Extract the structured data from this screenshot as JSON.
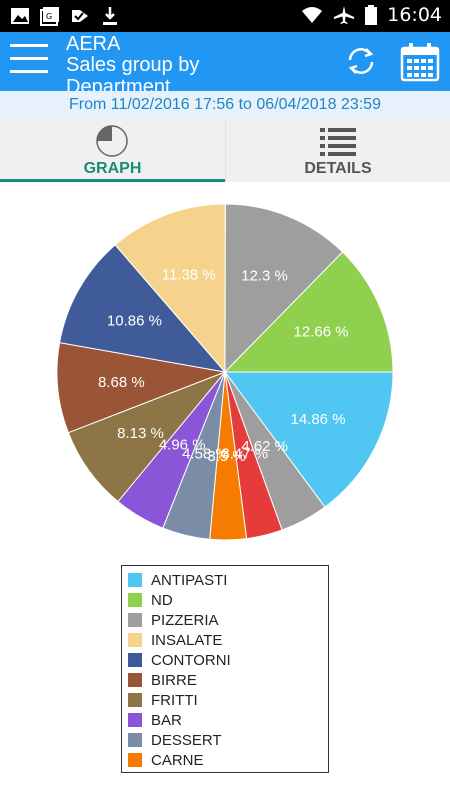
{
  "status_bar": {
    "time": "16:04",
    "icons": [
      "image-icon",
      "gallery-icon",
      "check-flag-icon",
      "download-icon",
      "wifi-icon",
      "airplane-icon",
      "battery-icon"
    ]
  },
  "app_bar": {
    "title": "AERA",
    "subtitle": "Sales group by Department",
    "icons": [
      "menu-icon",
      "refresh-icon",
      "calendar-icon"
    ]
  },
  "date_range": "From 11/02/2016 17:56 to 06/04/2018 23:59",
  "tabs": [
    {
      "label": "GRAPH",
      "icon": "pie-chart-icon",
      "selected": true
    },
    {
      "label": "DETAILS",
      "icon": "list-icon",
      "selected": false
    }
  ],
  "colors": {
    "app_bar": "#2196f3",
    "tab_active": "#1a8c7a",
    "status_bar": "#000000"
  },
  "chart_data": {
    "type": "pie",
    "title": "",
    "unit": "%",
    "slices": [
      {
        "name": "ANTIPASTI",
        "value": 14.86,
        "label": "14.86 %",
        "color": "#4fc7f2"
      },
      {
        "name": "",
        "value": 4.62,
        "label": "4.62 %",
        "color": "#9e9e9e"
      },
      {
        "name": "",
        "value": 3.47,
        "label": "3.47 %",
        "color": "#e53b3b"
      },
      {
        "name": "CARNE",
        "value": 3.5,
        "label": "3.5 %",
        "color": "#f57c00"
      },
      {
        "name": "DESSERT",
        "value": 4.58,
        "label": "4.58 %",
        "color": "#7a8ca6"
      },
      {
        "name": "BAR",
        "value": 4.96,
        "label": "4.96 %",
        "color": "#8a55d6"
      },
      {
        "name": "FRITTI",
        "value": 8.13,
        "label": "8.13 %",
        "color": "#8d7545"
      },
      {
        "name": "BIRRE",
        "value": 8.68,
        "label": "8.68 %",
        "color": "#9a5436"
      },
      {
        "name": "CONTORNI",
        "value": 10.86,
        "label": "10.86 %",
        "color": "#3f5b9a"
      },
      {
        "name": "INSALATE",
        "value": 11.38,
        "label": "11.38 %",
        "color": "#f6d38c"
      },
      {
        "name": "PIZZERIA",
        "value": 12.3,
        "label": "12.3 %",
        "color": "#9e9e9e"
      },
      {
        "name": "ND",
        "value": 12.66,
        "label": "12.66 %",
        "color": "#8fd14f"
      }
    ],
    "legend": [
      {
        "name": "ANTIPASTI",
        "color": "#4fc7f2"
      },
      {
        "name": "ND",
        "color": "#8fd14f"
      },
      {
        "name": "PIZZERIA",
        "color": "#9e9e9e"
      },
      {
        "name": "INSALATE",
        "color": "#f6d38c"
      },
      {
        "name": "CONTORNI",
        "color": "#3f5b9a"
      },
      {
        "name": "BIRRE",
        "color": "#9a5436"
      },
      {
        "name": "FRITTI",
        "color": "#8d7545"
      },
      {
        "name": "BAR",
        "color": "#8a55d6"
      },
      {
        "name": "DESSERT",
        "color": "#7a8ca6"
      },
      {
        "name": "CARNE",
        "color": "#f57c00"
      }
    ],
    "legend_position": "bottom"
  }
}
